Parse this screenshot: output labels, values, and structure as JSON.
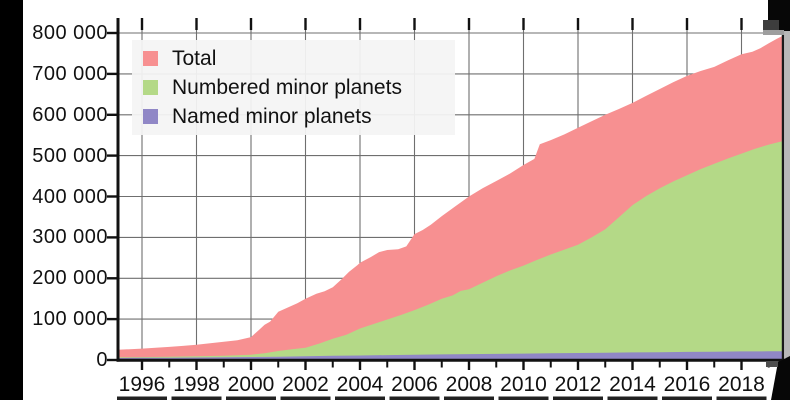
{
  "figure": {
    "background_color": "#000000",
    "panel_color": "#ffffff"
  },
  "legend": {
    "items": [
      {
        "label": "Total",
        "color": "#f79091"
      },
      {
        "label": "Numbered minor planets",
        "color": "#b4d987"
      },
      {
        "label": "Named minor planets",
        "color": "#9087c6"
      }
    ]
  },
  "chart_data": {
    "type": "area",
    "title": "",
    "xlabel": "",
    "ylabel": "",
    "grid": true,
    "grid_color": "#6f6f6f",
    "axis_color": "#111111",
    "legend_position": "top-left",
    "xlim": [
      1995.1,
      2019.6
    ],
    "ylim": [
      0,
      836000
    ],
    "x_tick_years": [
      1996,
      1998,
      2000,
      2002,
      2004,
      2006,
      2008,
      2010,
      2012,
      2014,
      2016,
      2018
    ],
    "x_tick_labels": [
      "1996",
      "1998",
      "2000",
      "2002",
      "2004",
      "2006",
      "2008",
      "2010",
      "2012",
      "2014",
      "2016",
      "2018"
    ],
    "x_minor_tick_years": [
      1997,
      1999,
      2001,
      2003,
      2005,
      2007,
      2009,
      2011,
      2013,
      2015,
      2017,
      2019
    ],
    "y_tick_values": [
      800000,
      700000,
      600000,
      500000,
      400000,
      300000,
      200000,
      100000,
      0
    ],
    "y_tick_labels": [
      "800 000",
      "700 000",
      "600 000",
      "500 000",
      "400 000",
      "300 000",
      "200 000",
      "100 000",
      "0"
    ],
    "series": [
      {
        "name": "Total",
        "color": "#f79091",
        "x": [
          1995.1,
          1996,
          1996.5,
          1997,
          1997.5,
          1998,
          1998.5,
          1999,
          1999.5,
          2000,
          2000.3,
          2000.5,
          2000.7,
          2001,
          2001.4,
          2001.7,
          2002,
          2002.4,
          2002.7,
          2003,
          2003.3,
          2003.6,
          2003.9,
          2004,
          2004.4,
          2004.7,
          2005,
          2005.4,
          2005.7,
          2006,
          2006.3,
          2006.6,
          2007,
          2007.5,
          2008,
          2008.5,
          2009,
          2009.5,
          2010,
          2010.4,
          2010.6,
          2011,
          2011.5,
          2012,
          2012.5,
          2013,
          2013.5,
          2014,
          2014.5,
          2015,
          2015.5,
          2016,
          2016.5,
          2017,
          2017.5,
          2018,
          2018.4,
          2018.7,
          2019,
          2019.3,
          2019.6
        ],
        "values": [
          25000,
          28000,
          30000,
          32000,
          34500,
          37500,
          41000,
          44500,
          48500,
          56000,
          74000,
          86000,
          94000,
          118000,
          130000,
          139000,
          150000,
          162000,
          168000,
          178000,
          196000,
          216000,
          232000,
          238000,
          252000,
          264000,
          269000,
          271000,
          278000,
          308000,
          318000,
          331000,
          352000,
          376000,
          400000,
          420000,
          438000,
          456000,
          477000,
          492000,
          528000,
          538000,
          552000,
          568000,
          584000,
          600000,
          614000,
          629000,
          646000,
          663000,
          680000,
          695000,
          707000,
          717000,
          733000,
          748000,
          754000,
          763000,
          775000,
          786000,
          796000
        ]
      },
      {
        "name": "Numbered minor planets",
        "color": "#b4d987",
        "x": [
          1995.1,
          1996,
          1997,
          1998,
          1999,
          2000,
          2000.5,
          2001,
          2001.5,
          2002,
          2002.5,
          2003,
          2003.5,
          2004,
          2004.5,
          2005,
          2005.5,
          2006,
          2006.5,
          2007,
          2007.4,
          2007.7,
          2008,
          2008.5,
          2009,
          2009.5,
          2010,
          2010.5,
          2011,
          2011.5,
          2012,
          2012.5,
          2013,
          2013.5,
          2014,
          2014.5,
          2015,
          2015.5,
          2016,
          2016.5,
          2017,
          2017.5,
          2018,
          2018.5,
          2019,
          2019.6
        ],
        "values": [
          6500,
          7200,
          8000,
          9000,
          10500,
          13000,
          16500,
          22000,
          26500,
          30000,
          40000,
          52000,
          62000,
          77000,
          88000,
          99000,
          110000,
          122000,
          135000,
          150000,
          158000,
          169000,
          173000,
          189000,
          205000,
          219000,
          231000,
          245000,
          258000,
          270000,
          282000,
          300000,
          320000,
          349000,
          379000,
          401000,
          420000,
          437000,
          452000,
          467000,
          480000,
          493000,
          505000,
          517000,
          527000,
          537000
        ]
      },
      {
        "name": "Named minor planets",
        "color": "#9087c6",
        "x": [
          1995.1,
          1996,
          1997,
          1998,
          1999,
          2000,
          2001,
          2002,
          2003,
          2004,
          2005,
          2006,
          2007,
          2008,
          2009,
          2010,
          2011,
          2012,
          2013,
          2014,
          2015,
          2016,
          2017,
          2018,
          2019,
          2019.6
        ],
        "values": [
          5000,
          5300,
          5700,
          6200,
          6800,
          7300,
          8100,
          9200,
          10200,
          11000,
          12000,
          12800,
          13600,
          14400,
          15000,
          15600,
          16400,
          17200,
          17800,
          18600,
          19200,
          19800,
          20300,
          21000,
          21300,
          21500
        ]
      }
    ]
  }
}
